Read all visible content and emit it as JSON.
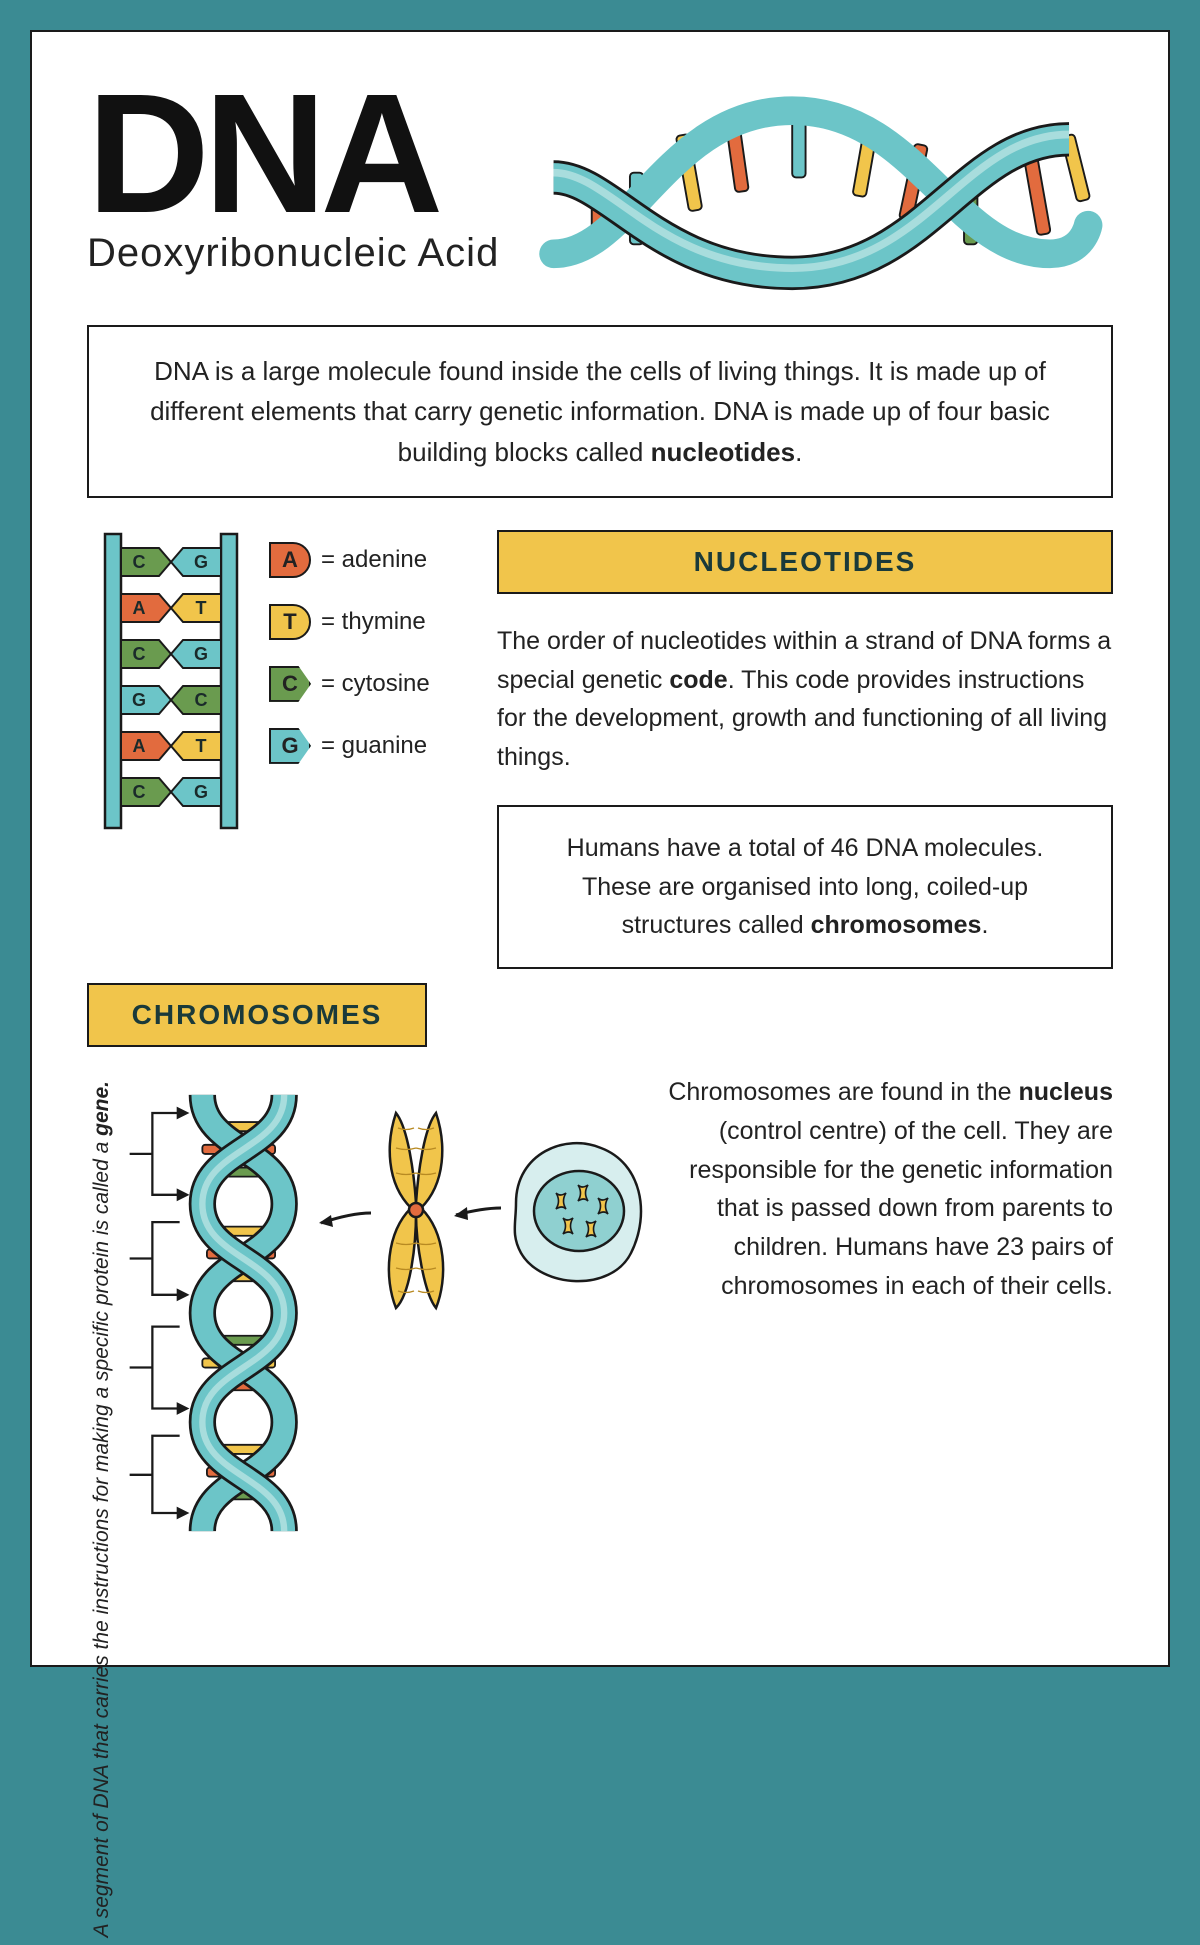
{
  "colors": {
    "page_border": "#3b8b93",
    "bg": "#ffffff",
    "text": "#222222",
    "banner_bg": "#f1c54b",
    "banner_text": "#1a3a3a",
    "border": "#1a1a1a",
    "helix_teal": "#6cc5c8",
    "helix_teal_dark": "#3b8b93",
    "bar_orange": "#e26b3e",
    "bar_yellow": "#f1c54b",
    "bar_green": "#6a9b4f",
    "bar_teal": "#6cc5c8"
  },
  "title": "DNA",
  "subtitle": "Deoxyribonucleic Acid",
  "intro_html": "DNA is a large molecule found inside the cells of living things. It is made up of different elements that carry genetic information. DNA is made up of four basic building blocks called <b>nucleotides</b>.",
  "nucleotides_legend": [
    {
      "letter": "A",
      "name": "adenine",
      "color": "#e26b3e",
      "shape": "cap"
    },
    {
      "letter": "T",
      "name": "thymine",
      "color": "#f1c54b",
      "shape": "cap"
    },
    {
      "letter": "C",
      "name": "cytosine",
      "color": "#6a9b4f",
      "shape": "arrow"
    },
    {
      "letter": "G",
      "name": "guanine",
      "color": "#6cc5c8",
      "shape": "arrow"
    }
  ],
  "ladder_pairs": [
    {
      "left": "C",
      "left_color": "#6a9b4f",
      "right": "G",
      "right_color": "#6cc5c8"
    },
    {
      "left": "A",
      "left_color": "#e26b3e",
      "right": "T",
      "right_color": "#f1c54b"
    },
    {
      "left": "C",
      "left_color": "#6a9b4f",
      "right": "G",
      "right_color": "#6cc5c8"
    },
    {
      "left": "G",
      "left_color": "#6cc5c8",
      "right": "C",
      "right_color": "#6a9b4f"
    },
    {
      "left": "A",
      "left_color": "#e26b3e",
      "right": "T",
      "right_color": "#f1c54b"
    },
    {
      "left": "C",
      "left_color": "#6a9b4f",
      "right": "G",
      "right_color": "#6cc5c8"
    }
  ],
  "nucleotides_heading": "NUCLEOTIDES",
  "nucleotides_text_html": "The order of nucleotides within a strand of DNA forms a special genetic <b>code</b>. This code provides instructions for the development, growth and functioning of all living things.",
  "chromosome_box_html": "Humans have a total of 46 DNA molecules. These are organised into long, coiled-up structures called <b>chromosomes</b>.",
  "chromosomes_heading": "CHROMOSOMES",
  "gene_caption_html": "A segment of DNA that carries the instructions for making a specific protein is called a <b>gene.</b>",
  "chromosome_text_html": "Chromosomes are found in the <b>nucleus</b> (control centre)  of the cell. They are responsible for the genetic information that is passed down from parents to children. Humans have 23 pairs of chromosomes in each of their cells."
}
